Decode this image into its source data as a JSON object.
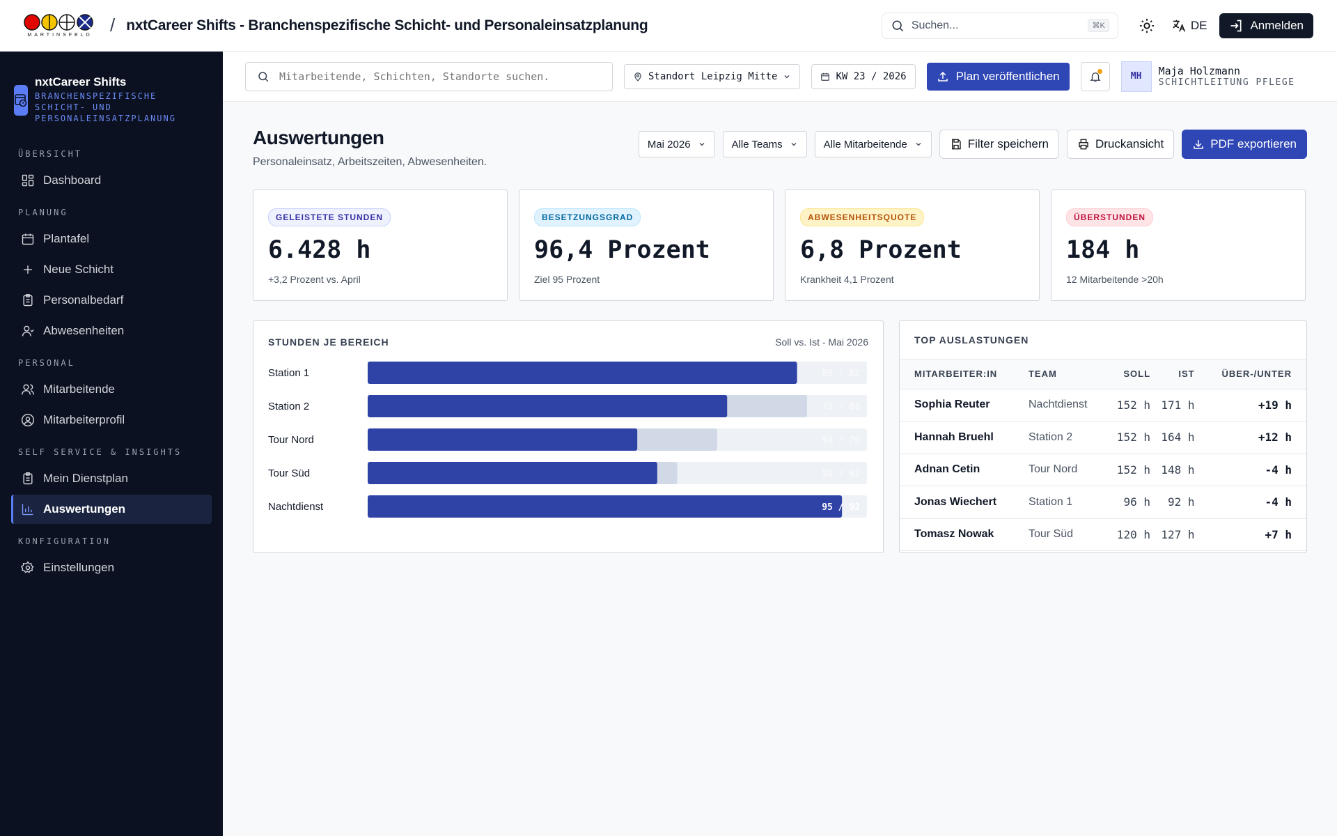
{
  "app": {
    "logo_text": "MARTINSFELD",
    "separator": "/",
    "title": "nxtCareer Shifts - Branchenspezifische Schicht- und Personaleinsatzplanung"
  },
  "topbar": {
    "search_placeholder": "Suchen...",
    "search_shortcut": "⌘K",
    "language": "DE",
    "login_label": "Anmelden"
  },
  "sidebar": {
    "brand_name": "nxtCareer Shifts",
    "brand_sub": "BRANCHENSPEZIFISCHE SCHICHT- UND PERSONALEINSATZPLANUNG",
    "sections": [
      {
        "title": "ÜBERSICHT",
        "items": [
          {
            "label": "Dashboard",
            "icon": "dashboard-icon"
          }
        ]
      },
      {
        "title": "PLANUNG",
        "items": [
          {
            "label": "Plantafel",
            "icon": "calendar-icon"
          },
          {
            "label": "Neue Schicht",
            "icon": "plus-icon"
          },
          {
            "label": "Personalbedarf",
            "icon": "clipboard-icon"
          },
          {
            "label": "Abwesenheiten",
            "icon": "user-icon"
          }
        ]
      },
      {
        "title": "PERSONAL",
        "items": [
          {
            "label": "Mitarbeitende",
            "icon": "users-icon"
          },
          {
            "label": "Mitarbeiterprofil",
            "icon": "user-circle-icon"
          }
        ]
      },
      {
        "title": "SELF SERVICE & INSIGHTS",
        "items": [
          {
            "label": "Mein Dienstplan",
            "icon": "clipboard-icon"
          },
          {
            "label": "Auswertungen",
            "icon": "bar-chart-icon",
            "active": true
          }
        ]
      },
      {
        "title": "KONFIGURATION",
        "items": [
          {
            "label": "Einstellungen",
            "icon": "gear-icon"
          }
        ]
      }
    ]
  },
  "subheader": {
    "search_placeholder": "Mitarbeitende, Schichten, Standorte suchen.",
    "location": "Standort Leipzig Mitte",
    "week": "KW 23 / 2026",
    "publish_label": "Plan veröffentlichen",
    "user_initials": "MH",
    "user_name": "Maja Holzmann",
    "user_role": "SCHICHTLEITUNG PFLEGE"
  },
  "page": {
    "title": "Auswertungen",
    "subtitle": "Personaleinsatz, Arbeitszeiten, Abwesenheiten.",
    "filters": {
      "month": "Mai 2026",
      "teams": "Alle Teams",
      "employees": "Alle Mitarbeitende"
    },
    "actions": {
      "save_filter": "Filter speichern",
      "print": "Druckansicht",
      "export": "PDF exportieren"
    }
  },
  "kpis": [
    {
      "label": "GELEISTETE STUNDEN",
      "value": "6.428 h",
      "note": "+3,2 Prozent vs. April",
      "badge_bg": "#eef2ff",
      "badge_fg": "#3730a3",
      "badge_border": "#c7d2fe"
    },
    {
      "label": "BESETZUNGSGRAD",
      "value": "96,4 Prozent",
      "note": "Ziel 95 Prozent",
      "badge_bg": "#e0f2fe",
      "badge_fg": "#0369a1",
      "badge_border": "#bae6fd"
    },
    {
      "label": "ABWESENHEITSQUOTE",
      "value": "6,8 Prozent",
      "note": "Krankheit 4,1 Prozent",
      "badge_bg": "#fef3c7",
      "badge_fg": "#b45309",
      "badge_border": "#fde68a"
    },
    {
      "label": "ÜBERSTUNDEN",
      "value": "184 h",
      "note": "12 Mitarbeitende >20h",
      "badge_bg": "#ffe4e6",
      "badge_fg": "#be123c",
      "badge_border": "#fecdd3"
    }
  ],
  "chart_data": {
    "type": "bar",
    "title": "STUNDEN JE BEREICH",
    "subtitle": "Soll vs. Ist - Mai 2026",
    "categories": [
      "Station 1",
      "Station 2",
      "Tour Nord",
      "Tour Süd",
      "Nachtdienst"
    ],
    "series": [
      {
        "values": [
          86,
          72,
          54,
          58,
          95
        ],
        "color": "#2f43a7"
      },
      {
        "values": [
          82,
          88,
          70,
          62,
          92
        ],
        "color": "#d1d9e6"
      }
    ],
    "labels": [
      "86 / 82",
      "72 / 88",
      "54 / 70",
      "58 / 62",
      "95 / 92"
    ],
    "xlim": [
      0,
      100
    ]
  },
  "table": {
    "title": "TOP AUSLASTUNGEN",
    "headers": [
      "MITARBEITER:IN",
      "TEAM",
      "SOLL",
      "IST",
      "ÜBER-/UNTER"
    ],
    "rows": [
      {
        "name": "Sophia Reuter",
        "team": "Nachtdienst",
        "soll": "152 h",
        "ist": "171 h",
        "delta": "+19 h"
      },
      {
        "name": "Hannah Bruehl",
        "team": "Station 2",
        "soll": "152 h",
        "ist": "164 h",
        "delta": "+12 h"
      },
      {
        "name": "Adnan Cetin",
        "team": "Tour Nord",
        "soll": "152 h",
        "ist": "148 h",
        "delta": "-4 h"
      },
      {
        "name": "Jonas Wiechert",
        "team": "Station 1",
        "soll": "96 h",
        "ist": "92 h",
        "delta": "-4 h"
      },
      {
        "name": "Tomasz Nowak",
        "team": "Tour Süd",
        "soll": "120 h",
        "ist": "127 h",
        "delta": "+7 h"
      }
    ]
  }
}
